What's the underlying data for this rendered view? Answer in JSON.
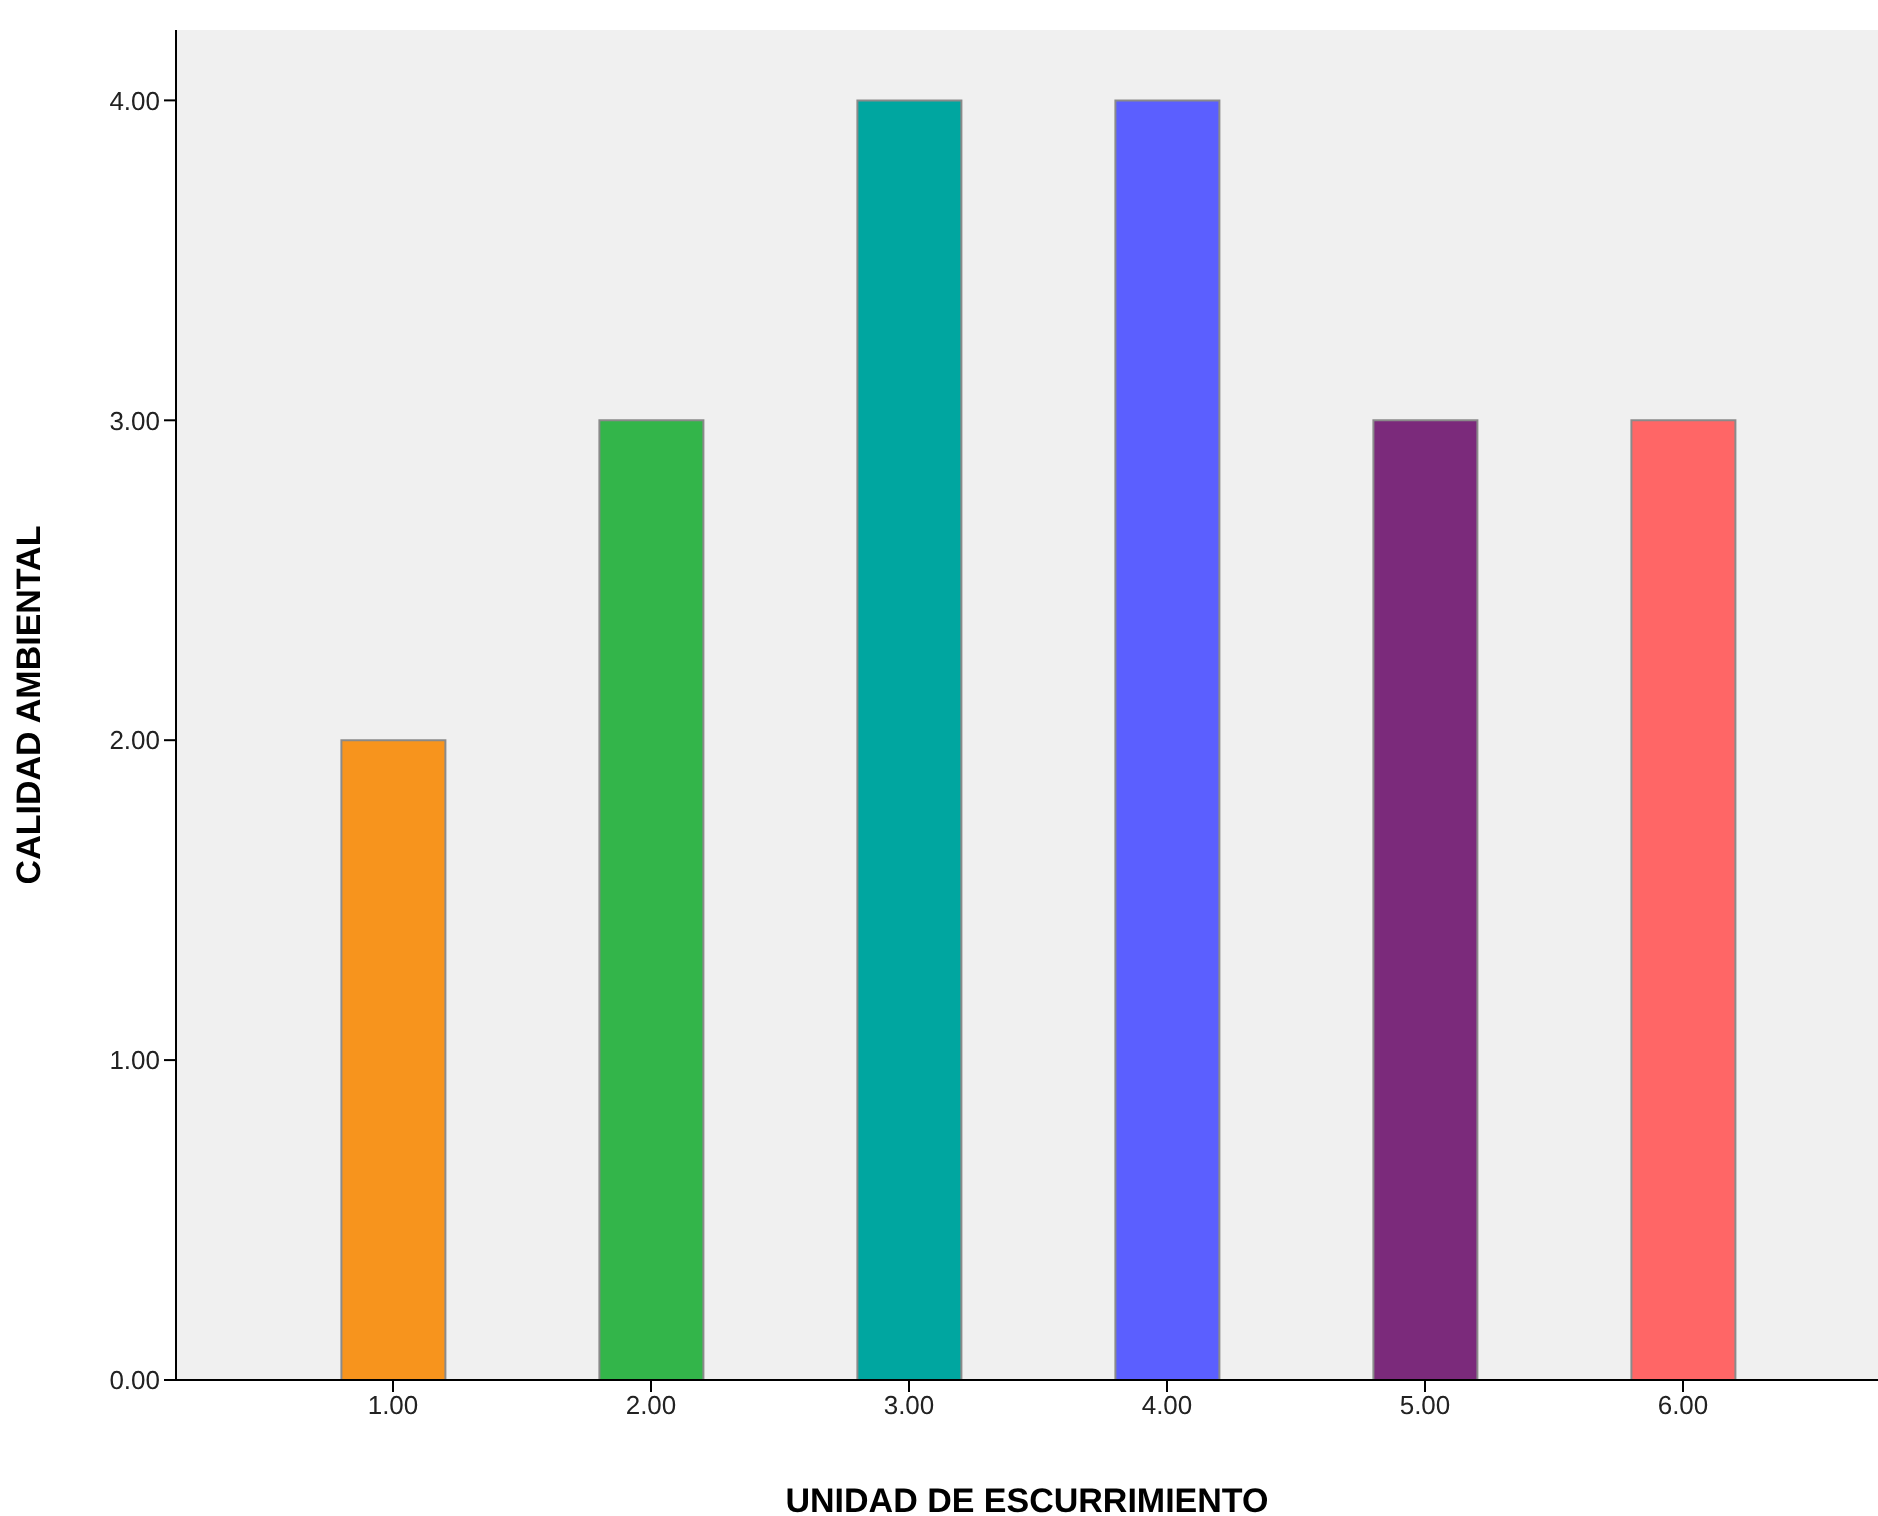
{
  "chart_data": {
    "type": "bar",
    "categories": [
      "1.00",
      "2.00",
      "3.00",
      "4.00",
      "5.00",
      "6.00"
    ],
    "values": [
      2,
      3,
      4,
      4,
      3,
      3
    ],
    "colors": [
      "#f7941d",
      "#33b54a",
      "#00a6a0",
      "#5b5fff",
      "#7b2a7b",
      "#ff6666"
    ],
    "xlabel": "UNIDAD DE ESCURRIMIENTO",
    "ylabel": "CALIDAD AMBIENTAL",
    "ylim": [
      0,
      4.22
    ],
    "yticks": [
      {
        "value": 0,
        "label": "0.00"
      },
      {
        "value": 1,
        "label": "1.00"
      },
      {
        "value": 2,
        "label": "2.00"
      },
      {
        "value": 3,
        "label": "3.00"
      },
      {
        "value": 4,
        "label": "4.00"
      }
    ],
    "grid": false,
    "legend": false
  }
}
